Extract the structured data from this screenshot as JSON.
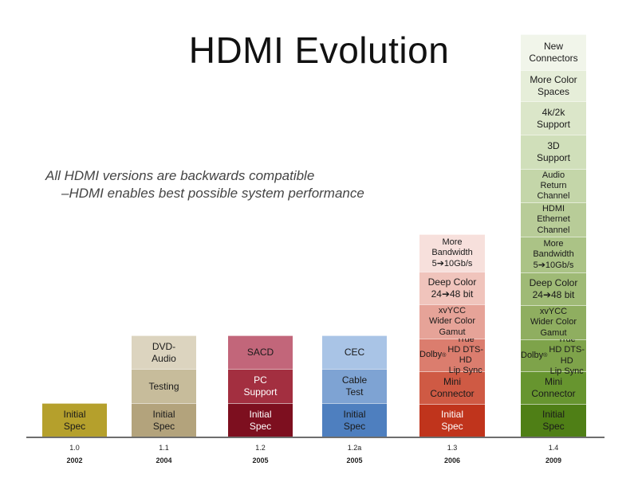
{
  "title": "HDMI Evolution",
  "subtitle": {
    "line1": "All HDMI versions are backwards compatible",
    "line2": "–HDMI enables best possible system performance"
  },
  "versions": [
    {
      "version": "1.0",
      "year": "2002",
      "blocks": [
        {
          "label": "Initial\nSpec",
          "color": "#b5a02c",
          "text_color": "#1a1a1a"
        }
      ]
    },
    {
      "version": "1.1",
      "year": "2004",
      "blocks": [
        {
          "label": "Initial\nSpec",
          "color": "#b3a37c",
          "text_color": "#1a1a1a"
        },
        {
          "label": "Testing",
          "color": "#c7bc9b",
          "text_color": "#1a1a1a"
        },
        {
          "label": "DVD-\nAudio",
          "color": "#dcd4bf",
          "text_color": "#1a1a1a"
        }
      ]
    },
    {
      "version": "1.2",
      "year": "2005",
      "blocks": [
        {
          "label": "Initial\nSpec",
          "color": "#7d0f1f",
          "text_color": "#ffffff"
        },
        {
          "label": "PC\nSupport",
          "color": "#a32f40",
          "text_color": "#ffffff"
        },
        {
          "label": "SACD",
          "color": "#c2667a",
          "text_color": "#1a1a1a"
        }
      ]
    },
    {
      "version": "1.2a",
      "year": "2005",
      "blocks": [
        {
          "label": "Initial\nSpec",
          "color": "#4e7fbf",
          "text_color": "#1a1a1a"
        },
        {
          "label": "Cable\nTest",
          "color": "#7ea3d3",
          "text_color": "#1a1a1a"
        },
        {
          "label": "CEC",
          "color": "#a9c4e6",
          "text_color": "#1a1a1a"
        }
      ]
    },
    {
      "version": "1.3",
      "year": "2006",
      "blocks": [
        {
          "label": "Initial\nSpec",
          "color": "#c0341c",
          "text_color": "#ffffff"
        },
        {
          "label": "Mini\nConnector",
          "color": "#cf5a44",
          "text_color": "#1a1a1a"
        },
        {
          "label": "Dolby® True\nHD DTS-HD\nLip Sync",
          "color": "#db7d6e",
          "text_color": "#1a1a1a"
        },
        {
          "label": "xvYCC\nWider Color\nGamut",
          "color": "#e6a398",
          "text_color": "#1a1a1a"
        },
        {
          "label": "Deep Color\n24➔48 bit",
          "color": "#f0c4bc",
          "text_color": "#1a1a1a"
        },
        {
          "label": "More\nBandwidth\n5➔10Gb/s",
          "color": "#f7e0dc",
          "text_color": "#1a1a1a"
        }
      ]
    },
    {
      "version": "1.4",
      "year": "2009",
      "blocks": [
        {
          "label": "Initial\nSpec",
          "color": "#4f7f16",
          "text_color": "#1a1a1a"
        },
        {
          "label": "Mini\nConnector",
          "color": "#67952f",
          "text_color": "#1a1a1a"
        },
        {
          "label": "Dolby® True\nHD DTS-HD\nLip Sync",
          "color": "#7ea34a",
          "text_color": "#1a1a1a"
        },
        {
          "label": "xvYCC\nWider Color\nGamut",
          "color": "#8fae60",
          "text_color": "#1a1a1a"
        },
        {
          "label": "Deep Color\n24➔48 bit",
          "color": "#9fba76",
          "text_color": "#1a1a1a"
        },
        {
          "label": "More\nBandwidth\n5➔10Gb/s",
          "color": "#abc386",
          "text_color": "#1a1a1a"
        },
        {
          "label": "HDMI\nEthernet\nChannel",
          "color": "#b8cc98",
          "text_color": "#1a1a1a"
        },
        {
          "label": "Audio\nReturn\nChannel",
          "color": "#c4d6a9",
          "text_color": "#1a1a1a"
        },
        {
          "label": "3D\nSupport",
          "color": "#d0dfba",
          "text_color": "#1a1a1a"
        },
        {
          "label": "4k/2k\nSupport",
          "color": "#dbe6c9",
          "text_color": "#1a1a1a"
        },
        {
          "label": "More Color\nSpaces",
          "color": "#e6eed9",
          "text_color": "#1a1a1a"
        },
        {
          "label": "New\nConnectors",
          "color": "#f1f5ea",
          "text_color": "#1a1a1a"
        }
      ]
    }
  ]
}
